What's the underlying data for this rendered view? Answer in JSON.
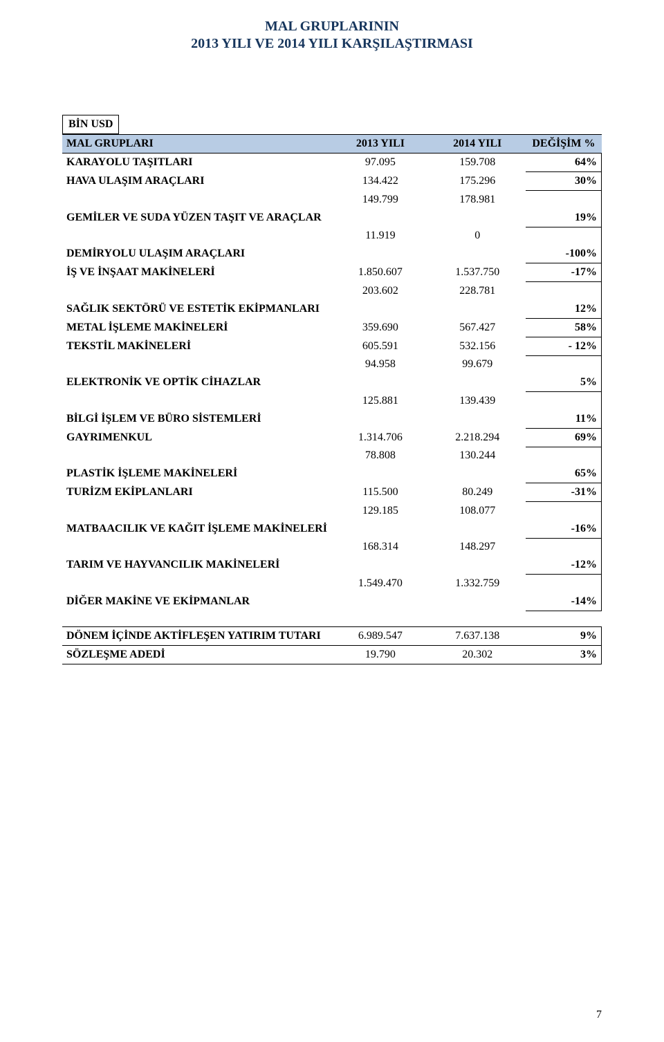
{
  "title": {
    "line1": "MAL GRUPLARININ",
    "line2": "2013 YILI VE 2014 YILI  KARŞILAŞTIRMASI",
    "color": "#17365d",
    "fontsize": 20
  },
  "unit_label": "BİN USD",
  "columns": {
    "label": "MAL GRUPLARI",
    "y2013": "2013 YILI",
    "y2014": "2014 YILI",
    "change": "DEĞİŞİM  %"
  },
  "header_bg": "#b8cce4",
  "border_color": "#000000",
  "background_color": "#ffffff",
  "rows": [
    {
      "label": "KARAYOLU TAŞITLARI",
      "y2013": "97.095",
      "y2014": "159.708",
      "pct": "64%",
      "two_line": false
    },
    {
      "label": "HAVA ULAŞIM ARAÇLARI",
      "y2013": "134.422",
      "y2014": "175.296",
      "pct": "30%",
      "two_line": false
    },
    {
      "label": "GEMİLER VE SUDA YÜZEN TAŞIT VE ARAÇLAR",
      "y2013": "149.799",
      "y2014": "178.981",
      "pct": "19%",
      "two_line": true
    },
    {
      "label": "DEMİRYOLU ULAŞIM ARAÇLARI",
      "y2013": "11.919",
      "y2014": "0",
      "pct": "-100%",
      "two_line": true
    },
    {
      "label": "İŞ VE İNŞAAT MAKİNELERİ",
      "y2013": "1.850.607",
      "y2014": "1.537.750",
      "pct": "-17%",
      "two_line": false
    },
    {
      "label": "SAĞLIK SEKTÖRÜ VE ESTETİK EKİPMANLARI",
      "y2013": "203.602",
      "y2014": "228.781",
      "pct": "12%",
      "two_line": true
    },
    {
      "label": "METAL İŞLEME MAKİNELERİ",
      "y2013": "359.690",
      "y2014": "567.427",
      "pct": "58%",
      "two_line": false
    },
    {
      "label": "TEKSTİL MAKİNELERİ",
      "y2013": "605.591",
      "y2014": "532.156",
      "pct": "- 12%",
      "two_line": false
    },
    {
      "label": "ELEKTRONİK VE OPTİK CİHAZLAR",
      "y2013": "94.958",
      "y2014": "99.679",
      "pct": "5%",
      "two_line": true
    },
    {
      "label": "BİLGİ İŞLEM VE BÜRO SİSTEMLERİ",
      "y2013": "125.881",
      "y2014": "139.439",
      "pct": "11%",
      "two_line": true
    },
    {
      "label": "GAYRIMENKUL",
      "y2013": "1.314.706",
      "y2014": "2.218.294",
      "pct": "69%",
      "two_line": false
    },
    {
      "label": "PLASTİK İŞLEME MAKİNELERİ",
      "y2013": "78.808",
      "y2014": "130.244",
      "pct": "65%",
      "two_line": true
    },
    {
      "label": "TURİZM EKİPLANLARI",
      "y2013": "115.500",
      "y2014": "80.249",
      "pct": "-31%",
      "two_line": false
    },
    {
      "label": "MATBAACILIK VE KAĞIT İŞLEME MAKİNELERİ",
      "y2013": "129.185",
      "y2014": "108.077",
      "pct": "-16%",
      "two_line": true
    },
    {
      "label": "TARIM VE HAYVANCILIK MAKİNELERİ",
      "y2013": "168.314",
      "y2014": "148.297",
      "pct": "-12%",
      "two_line": true
    },
    {
      "label": "DİĞER MAKİNE VE EKİPMANLAR",
      "y2013": "1.549.470",
      "y2014": "1.332.759",
      "pct": "-14%",
      "two_line": true
    }
  ],
  "footer": [
    {
      "label": "DÖNEM İÇİNDE AKTİFLEŞEN YATIRIM TUTARI",
      "y2013": "6.989.547",
      "y2014": "7.637.138",
      "pct": "9%"
    },
    {
      "label": "SÖZLEŞME ADEDİ",
      "y2013": "19.790",
      "y2014": "20.302",
      "pct": "3%"
    }
  ],
  "page_number": "7",
  "table_style": {
    "type": "table",
    "font_family": "Times New Roman",
    "body_fontsize": 16,
    "label_weight": "bold",
    "num_align": "center",
    "pct_align": "right",
    "col_widths_pct": [
      50,
      18,
      18,
      14
    ]
  }
}
